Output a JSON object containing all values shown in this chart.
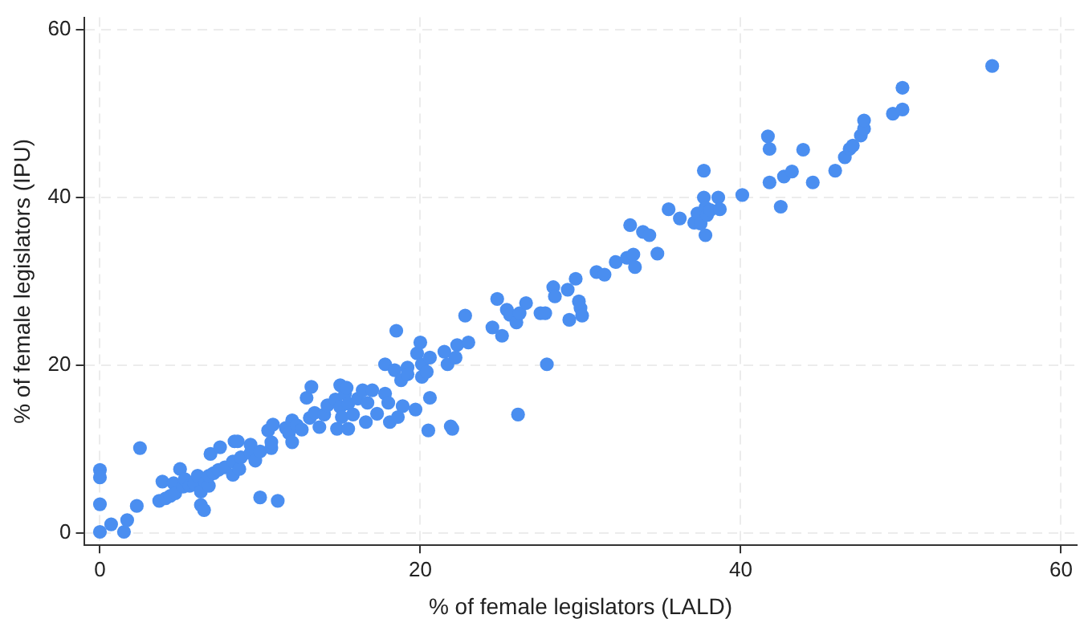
{
  "chart_data": {
    "type": "scatter",
    "xlabel": "% of female legislators (LALD)",
    "ylabel": "% of female legislators (IPU)",
    "xlim": [
      -1,
      61
    ],
    "ylim": [
      -1.5,
      61.5
    ],
    "xticks": [
      0,
      20,
      40,
      60
    ],
    "yticks": [
      0,
      20,
      40,
      60
    ],
    "grid": true,
    "marker": "circle",
    "legend": false,
    "series": [
      {
        "color": "#4a8ef0",
        "x": [
          0,
          0,
          0,
          0,
          0.7,
          1.5,
          1.7,
          2.3,
          2.5,
          3.7,
          3.9,
          4.1,
          4.4,
          4.6,
          4.7,
          5.0,
          5.2,
          5.3,
          5.6,
          5.9,
          6.1,
          6.3,
          6.3,
          6.5,
          6.6,
          6.8,
          6.8,
          6.9,
          7.1,
          7.4,
          7.5,
          7.8,
          8.3,
          8.4,
          8.6,
          8.3,
          8.7,
          8.8,
          9.4,
          9.4,
          9.7,
          10.0,
          10.0,
          10.5,
          10.7,
          10.7,
          10.8,
          11.1,
          11.6,
          11.8,
          12.0,
          12.0,
          12.3,
          12.6,
          12.9,
          13.2,
          13.1,
          13.4,
          13.7,
          14.0,
          14.2,
          14.7,
          14.8,
          15.0,
          15.0,
          15.1,
          15.3,
          15.4,
          15.5,
          15.5,
          15.8,
          16.1,
          16.4,
          16.6,
          16.7,
          17.0,
          17.3,
          17.8,
          17.8,
          18.0,
          18.1,
          18.4,
          18.5,
          18.6,
          18.8,
          18.9,
          19.2,
          19.2,
          19.7,
          19.8,
          20.0,
          20.1,
          20.1,
          20.4,
          20.5,
          20.6,
          20.6,
          21.5,
          21.7,
          21.9,
          22.0,
          22.2,
          22.3,
          22.8,
          23.0,
          24.5,
          24.8,
          25.1,
          25.4,
          25.6,
          26.0,
          26.1,
          26.2,
          26.6,
          27.5,
          27.8,
          27.9,
          28.3,
          28.4,
          29.2,
          29.3,
          29.7,
          29.9,
          30.0,
          30.1,
          31.0,
          31.5,
          32.2,
          32.9,
          33.1,
          33.3,
          33.4,
          33.9,
          34.3,
          34.8,
          35.5,
          36.2,
          37.1,
          37.3,
          37.5,
          37.7,
          37.7,
          37.8,
          37.9,
          37.8,
          38.1,
          38.6,
          38.7,
          40.1,
          41.7,
          41.8,
          41.8,
          42.5,
          42.7,
          43.2,
          43.9,
          44.5,
          45.9,
          46.5,
          46.8,
          47.0,
          47.5,
          47.7,
          47.7,
          49.5,
          50.1,
          50.1,
          55.7
        ],
        "values": [
          7.5,
          6.6,
          3.4,
          0.1,
          1.0,
          0.1,
          1.5,
          3.2,
          10.1,
          3.8,
          6.1,
          4.1,
          4.4,
          5.9,
          4.7,
          7.6,
          5.5,
          6.4,
          5.6,
          5.9,
          6.8,
          4.9,
          3.3,
          2.7,
          6.0,
          5.6,
          6.8,
          9.4,
          7.1,
          7.5,
          10.2,
          7.8,
          8.5,
          10.9,
          10.9,
          6.9,
          7.6,
          9.0,
          10.5,
          9.5,
          8.6,
          9.7,
          4.2,
          12.2,
          10.1,
          10.8,
          12.9,
          3.8,
          12.5,
          11.9,
          10.8,
          13.4,
          12.8,
          12.3,
          16.1,
          17.4,
          13.7,
          14.3,
          12.6,
          14.1,
          15.2,
          15.9,
          12.4,
          15.0,
          17.6,
          13.8,
          16.6,
          17.3,
          12.4,
          15.4,
          14.1,
          16.0,
          17.0,
          13.2,
          15.5,
          17.0,
          14.2,
          20.1,
          16.6,
          15.5,
          13.2,
          19.4,
          24.1,
          13.8,
          18.2,
          15.1,
          19.7,
          18.9,
          14.7,
          21.4,
          22.7,
          20.1,
          18.6,
          19.2,
          12.2,
          20.9,
          16.1,
          21.6,
          20.1,
          12.7,
          12.4,
          20.9,
          22.4,
          25.9,
          22.7,
          24.5,
          27.9,
          23.5,
          26.6,
          26.0,
          25.1,
          14.1,
          26.2,
          27.4,
          26.2,
          26.2,
          20.1,
          29.3,
          28.2,
          29.0,
          25.4,
          30.3,
          27.6,
          26.8,
          25.9,
          31.1,
          30.8,
          32.3,
          32.8,
          36.7,
          33.2,
          31.7,
          35.9,
          35.5,
          33.3,
          38.6,
          37.5,
          37.0,
          38.1,
          36.9,
          43.2,
          40.0,
          38.8,
          37.9,
          35.5,
          38.5,
          40.0,
          38.6,
          40.3,
          47.3,
          45.8,
          41.8,
          38.9,
          42.5,
          43.1,
          45.7,
          41.8,
          43.2,
          44.8,
          45.8,
          46.2,
          47.4,
          48.2,
          49.2,
          50.0,
          50.5,
          53.1,
          55.7
        ]
      }
    ]
  }
}
